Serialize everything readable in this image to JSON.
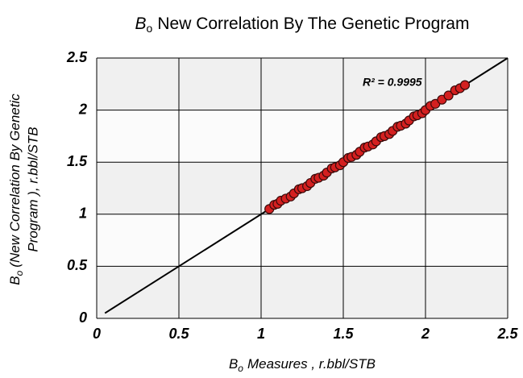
{
  "chart_data": {
    "type": "scatter",
    "title": {
      "symbol": "B",
      "subscript": "o",
      "text": "New Correlation  By The Genetic  Program"
    },
    "x_label": {
      "symbol": "B",
      "subscript": "o",
      "text": "Measures , r.bbl/STB"
    },
    "y_label": {
      "symbol": "B",
      "subscript": "o",
      "lines": [
        "(New Correlation By Genetic",
        "Program ), r.bbl/STB"
      ]
    },
    "annotation": "R² = 0.9995",
    "xlim": [
      0,
      2.5
    ],
    "ylim": [
      0,
      2.5
    ],
    "xticks": [
      0,
      0.5,
      1,
      1.5,
      2,
      2.5
    ],
    "yticks": [
      0,
      0.5,
      1,
      1.5,
      2,
      2.5
    ],
    "grid": true,
    "color": "#d42020",
    "x": [
      1.05,
      1.08,
      1.1,
      1.12,
      1.15,
      1.18,
      1.2,
      1.23,
      1.25,
      1.28,
      1.3,
      1.33,
      1.35,
      1.38,
      1.4,
      1.43,
      1.45,
      1.48,
      1.5,
      1.53,
      1.55,
      1.58,
      1.6,
      1.63,
      1.65,
      1.68,
      1.7,
      1.73,
      1.75,
      1.78,
      1.8,
      1.83,
      1.85,
      1.88,
      1.9,
      1.93,
      1.95,
      1.98,
      2.0,
      2.03,
      2.06,
      2.1,
      2.14,
      2.18,
      2.21,
      2.24
    ],
    "y": [
      1.05,
      1.09,
      1.1,
      1.13,
      1.15,
      1.17,
      1.2,
      1.24,
      1.25,
      1.27,
      1.3,
      1.34,
      1.35,
      1.37,
      1.4,
      1.44,
      1.45,
      1.47,
      1.5,
      1.54,
      1.55,
      1.57,
      1.6,
      1.64,
      1.65,
      1.67,
      1.7,
      1.74,
      1.75,
      1.77,
      1.8,
      1.84,
      1.85,
      1.87,
      1.9,
      1.94,
      1.95,
      1.97,
      2.0,
      2.04,
      2.06,
      2.1,
      2.14,
      2.19,
      2.21,
      2.24
    ],
    "trendline": {
      "color": "#000000",
      "x": [
        0.05,
        2.5
      ],
      "y": [
        0.05,
        2.5
      ]
    }
  }
}
